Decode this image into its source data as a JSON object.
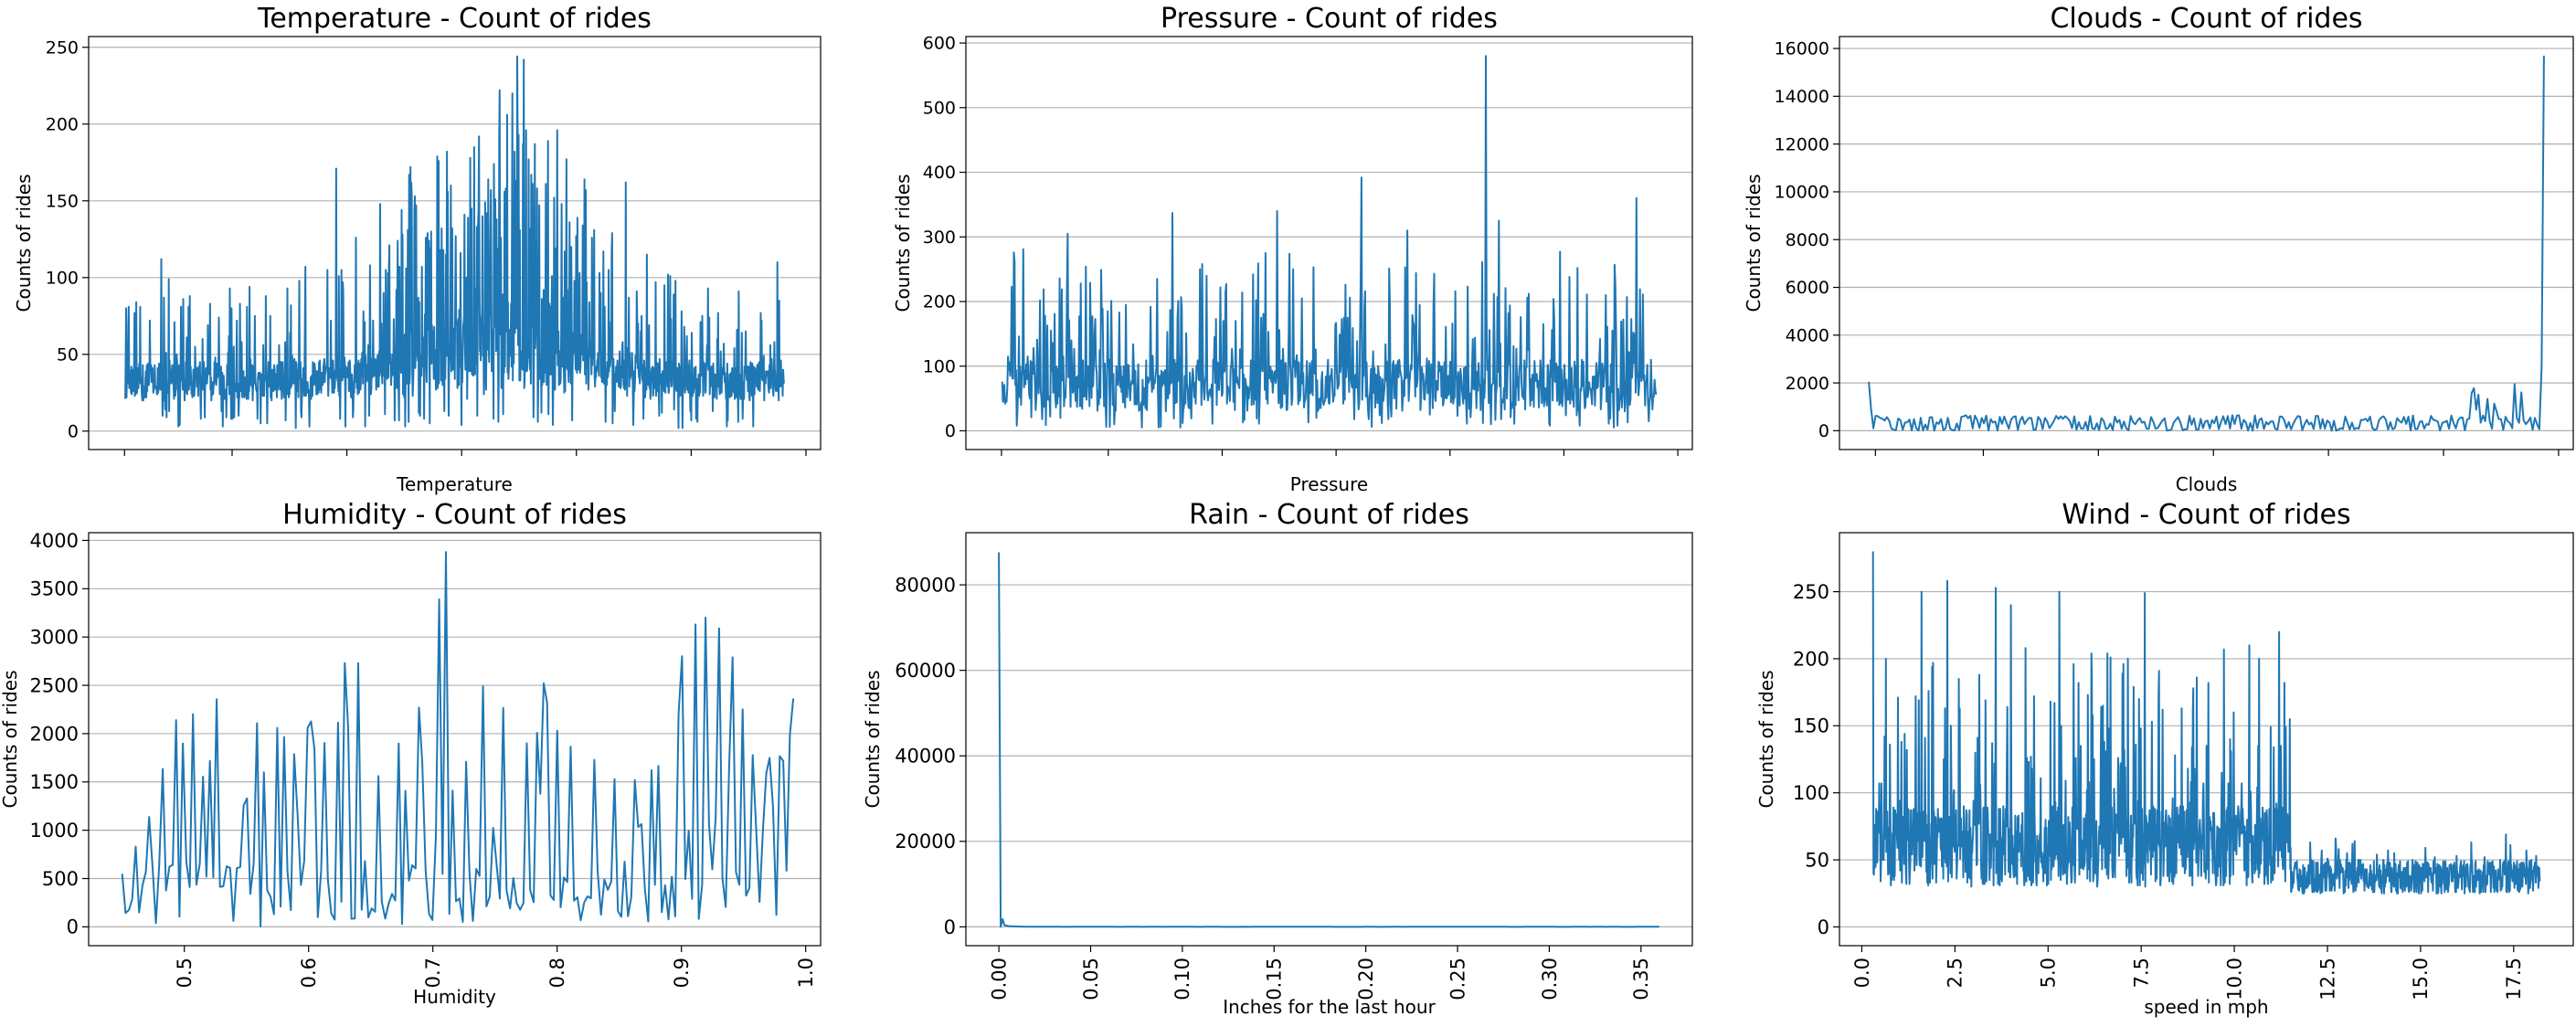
{
  "chart_data": [
    {
      "type": "line",
      "title": "Temperature - Count of rides",
      "xlabel": "Temperature",
      "ylabel": "Counts of rides",
      "xlim": [
        0,
        100
      ],
      "ylim": [
        -12,
        257
      ],
      "xticks": [],
      "yticks": [
        0,
        50,
        100,
        150,
        200,
        250
      ],
      "grid": "y",
      "color": "#1f77b4",
      "series": [
        {
          "x": [],
          "values": []
        }
      ]
    },
    {
      "type": "line",
      "title": "Pressure - Count of rides",
      "xlabel": "Pressure",
      "ylabel": "Counts of rides",
      "xlim": [
        0,
        100
      ],
      "ylim": [
        -29,
        610
      ],
      "xticks": [],
      "yticks": [
        0,
        100,
        200,
        300,
        400,
        500,
        600
      ],
      "grid": "y",
      "color": "#1f77b4",
      "series": [
        {
          "x": [],
          "values": []
        }
      ]
    },
    {
      "type": "line",
      "title": "Clouds - Count of rides",
      "xlabel": "Clouds",
      "ylabel": "Counts of rides",
      "xlim": [
        0,
        100
      ],
      "ylim": [
        -788,
        16500
      ],
      "xticks": [],
      "yticks": [
        0,
        2000,
        4000,
        6000,
        8000,
        10000,
        12000,
        14000,
        16000
      ],
      "grid": "y",
      "color": "#1f77b4",
      "series": [
        {
          "x": [],
          "values": []
        }
      ]
    },
    {
      "type": "line",
      "title": "Humidity - Count of rides",
      "xlabel": "Humidity",
      "ylabel": "Counts of rides",
      "xlim": [
        0.423,
        1.012
      ],
      "ylim": [
        -195,
        4080
      ],
      "xticks": [
        0.5,
        0.6,
        0.7,
        0.8,
        0.9,
        1.0
      ],
      "yticks": [
        0,
        500,
        1000,
        1500,
        2000,
        2500,
        3000,
        3500,
        4000
      ],
      "grid": "y",
      "color": "#1f77b4",
      "series": [
        {
          "x": [],
          "values": []
        }
      ]
    },
    {
      "type": "line",
      "title": "Rain - Count of rides",
      "xlabel": "Inches for the last hour",
      "ylabel": "Counts of rides",
      "xlim": [
        -0.018,
        0.378
      ],
      "ylim": [
        -4400,
        92200
      ],
      "xticks": [
        0.0,
        0.05,
        0.1,
        0.15,
        0.2,
        0.25,
        0.3,
        0.35
      ],
      "yticks": [
        0,
        20000,
        40000,
        60000,
        80000
      ],
      "grid": "y",
      "color": "#1f77b4",
      "series": [
        {
          "x": [],
          "values": []
        }
      ]
    },
    {
      "type": "line",
      "title": "Wind - Count of rides",
      "xlabel": "speed in mph",
      "ylabel": "Counts of rides",
      "xlim": [
        -0.6,
        19.1
      ],
      "ylim": [
        -14,
        294
      ],
      "xticks": [
        0.0,
        2.5,
        5.0,
        7.5,
        10.0,
        12.5,
        15.0,
        17.5
      ],
      "yticks": [
        0,
        50,
        100,
        150,
        200,
        250
      ],
      "grid": "y",
      "color": "#1f77b4",
      "series": [
        {
          "x": [],
          "values": []
        }
      ]
    }
  ]
}
